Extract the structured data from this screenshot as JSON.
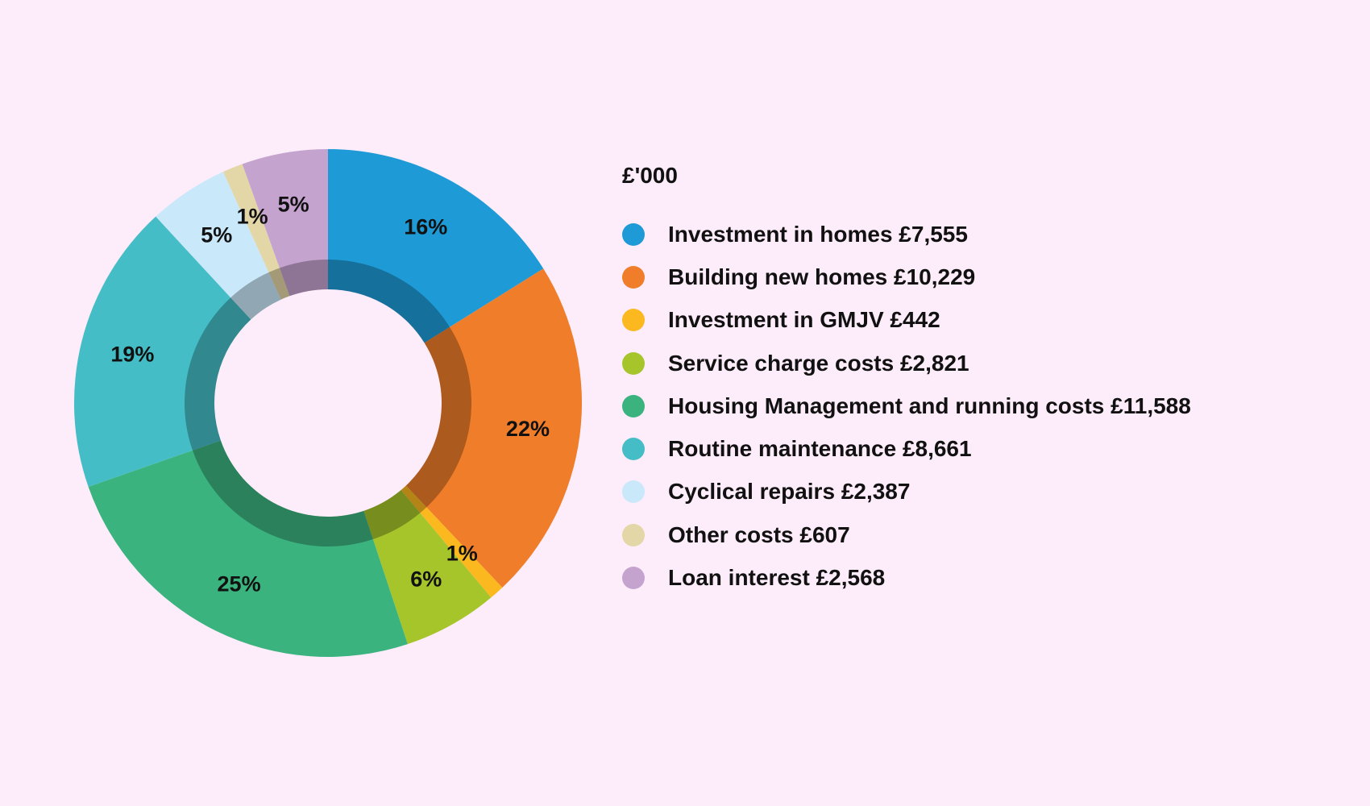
{
  "chart_data": {
    "type": "pie",
    "variant": "donut",
    "legend_title": "£'000",
    "legend_position": "right",
    "slices": [
      {
        "name": "Investment in homes",
        "amount": "£7,555",
        "value": 7555,
        "pct_label": "16%",
        "color": "#1e9bd7"
      },
      {
        "name": "Building new homes",
        "amount": "£10,229",
        "value": 10229,
        "pct_label": "22%",
        "color": "#f07d2a"
      },
      {
        "name": "Investment in GMJV",
        "amount": "£442",
        "value": 442,
        "pct_label": "1%",
        "color": "#fbb81f"
      },
      {
        "name": "Service charge costs",
        "amount": "£2,821",
        "value": 2821,
        "pct_label": "6%",
        "color": "#a6c52b"
      },
      {
        "name": "Housing Management and running costs",
        "amount": "£11,588",
        "value": 11588,
        "pct_label": "25%",
        "color": "#3bb37f"
      },
      {
        "name": "Routine maintenance",
        "amount": "£8,661",
        "value": 8661,
        "pct_label": "19%",
        "color": "#45bdc6"
      },
      {
        "name": "Cyclical repairs",
        "amount": "£2,387",
        "value": 2387,
        "pct_label": "5%",
        "color": "#c9e8fa"
      },
      {
        "name": "Other costs",
        "amount": "£607",
        "value": 607,
        "pct_label": "1%",
        "color": "#e3d6a7"
      },
      {
        "name": "Loan interest",
        "amount": "£2,568",
        "value": 2568,
        "pct_label": "5%",
        "color": "#c5a3cf"
      }
    ]
  }
}
